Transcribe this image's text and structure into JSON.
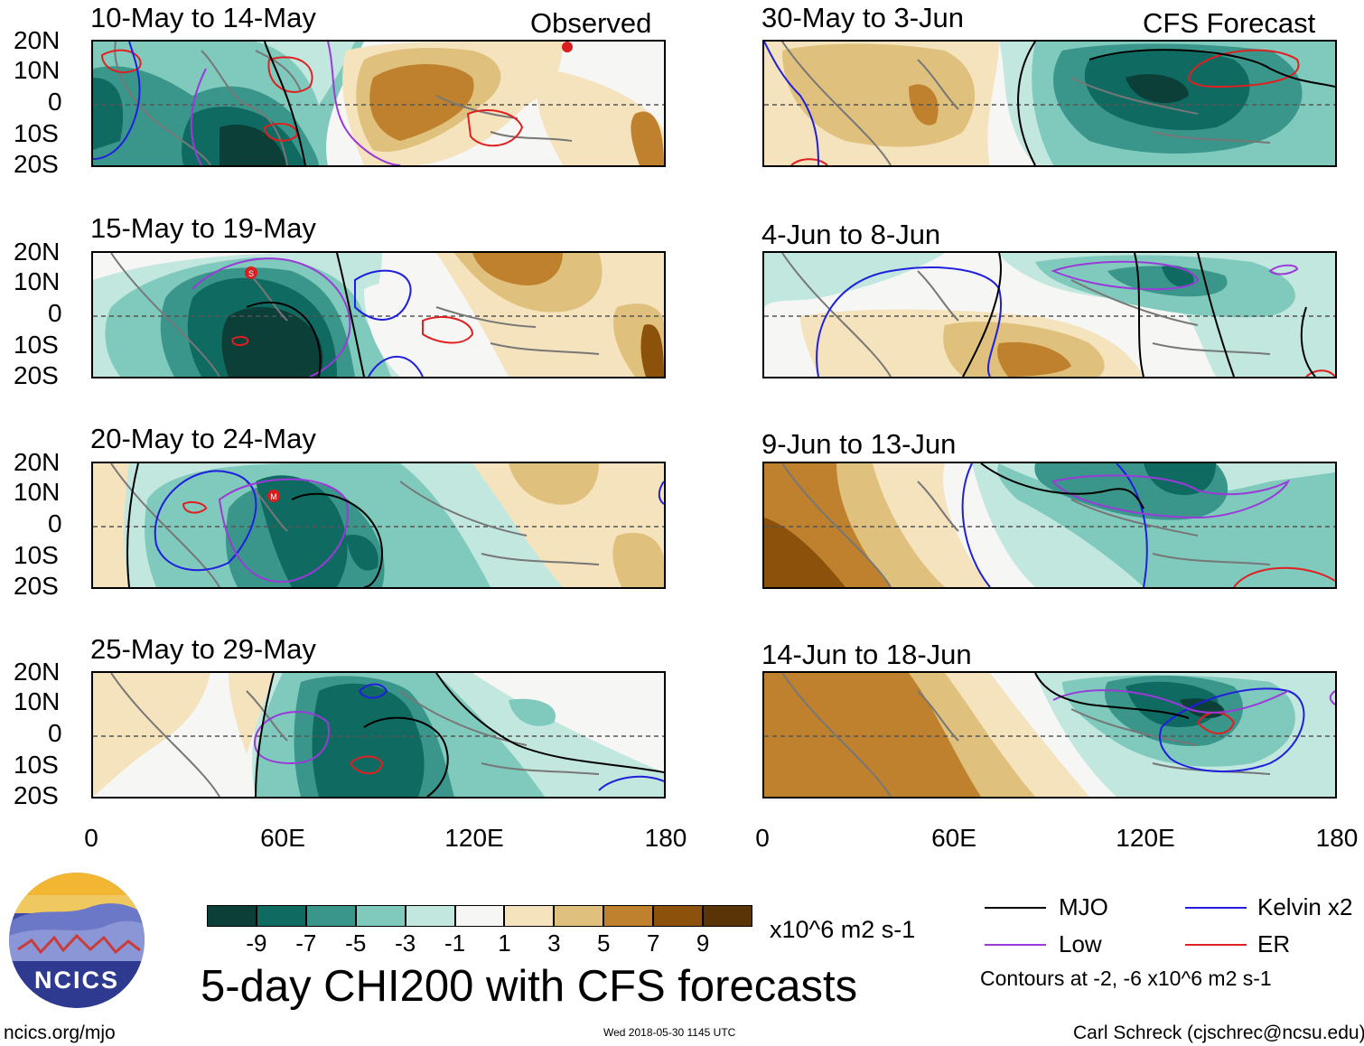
{
  "panels": [
    {
      "title": "10-May to 14-May",
      "corner": "Observed"
    },
    {
      "title": "15-May to 19-May",
      "corner": ""
    },
    {
      "title": "20-May to 24-May",
      "corner": ""
    },
    {
      "title": "25-May to 29-May",
      "corner": ""
    },
    {
      "title": "30-May to 3-Jun",
      "corner": "CFS Forecast"
    },
    {
      "title": "4-Jun to 8-Jun",
      "corner": ""
    },
    {
      "title": "9-Jun to 13-Jun",
      "corner": ""
    },
    {
      "title": "14-Jun to 18-Jun",
      "corner": ""
    }
  ],
  "lat_labels": [
    "20N",
    "10N",
    "0",
    "10S",
    "20S"
  ],
  "lon_labels": [
    "0",
    "60E",
    "120E",
    "180"
  ],
  "colorbar": {
    "ticks": [
      "-9",
      "-7",
      "-5",
      "-3",
      "-1",
      "1",
      "3",
      "5",
      "7",
      "9"
    ],
    "colors": [
      "#0b3f37",
      "#0f6b61",
      "#3a968b",
      "#7fcabd",
      "#c2e7de",
      "#f6f6f4",
      "#f4e3bc",
      "#dfc07c",
      "#bf812d",
      "#8c510a",
      "#5a3406"
    ],
    "units": "x10^6 m2 s-1"
  },
  "main_title": "5-day CHI200 with CFS forecasts",
  "legend": {
    "items": [
      {
        "label": "MJO",
        "color": "#000000"
      },
      {
        "label": "Kelvin x2",
        "color": "#1f1fdd"
      },
      {
        "label": "Low",
        "color": "#9a3ad8"
      },
      {
        "label": "ER",
        "color": "#e02020"
      }
    ],
    "note": "Contours at -2, -6 x10^6 m2 s-1"
  },
  "storm_markers": [
    "S",
    "M"
  ],
  "logo_text": "NCICS",
  "footer": {
    "left": "ncics.org/mjo",
    "middle": "Wed 2018-05-30 1145 UTC",
    "right": "Carl Schreck (cjschrec@ncsu.edu)"
  }
}
